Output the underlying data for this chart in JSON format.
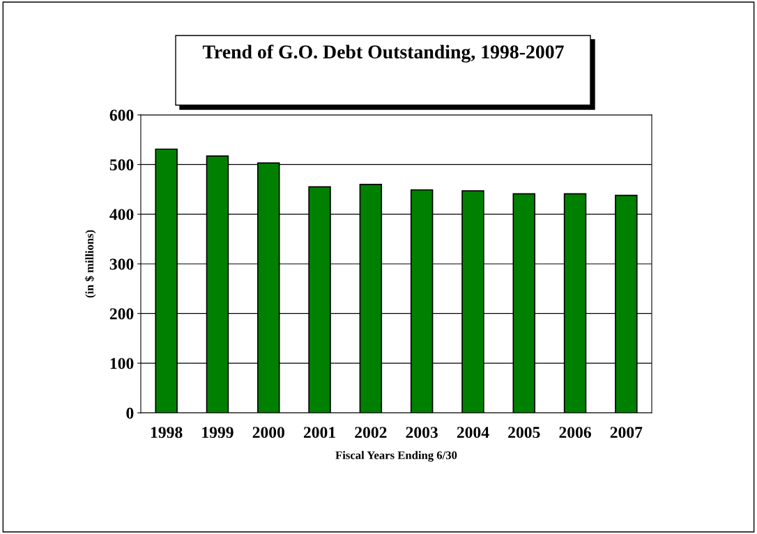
{
  "chart_data": {
    "type": "bar",
    "title": "Trend of G.O. Debt Outstanding, 1998-2007",
    "xlabel": "Fiscal Years Ending 6/30",
    "ylabel": "(in $ millions)",
    "categories": [
      "1998",
      "1999",
      "2000",
      "2001",
      "2002",
      "2003",
      "2004",
      "2005",
      "2006",
      "2007"
    ],
    "values": [
      531,
      517,
      503,
      455,
      460,
      449,
      447,
      441,
      441,
      438
    ],
    "color": "#008000",
    "ylim": [
      0,
      600
    ],
    "yticks": [
      0,
      100,
      200,
      300,
      400,
      500,
      600
    ],
    "grid": "y"
  }
}
